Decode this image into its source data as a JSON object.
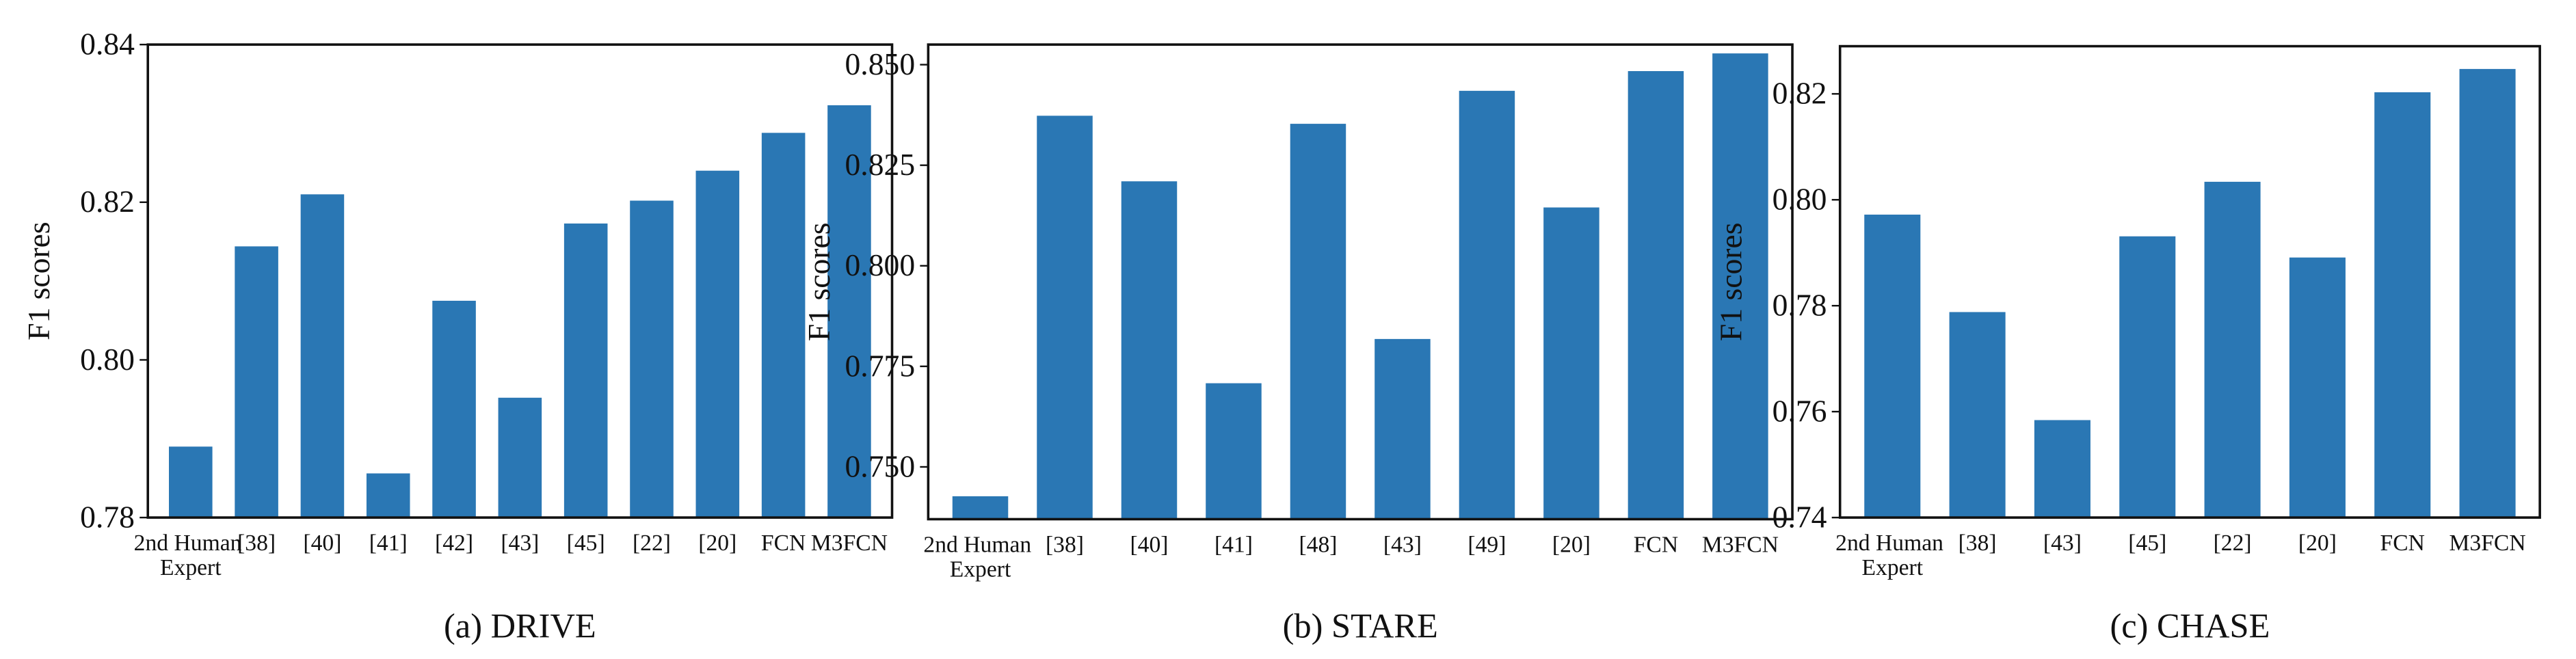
{
  "chart_data": [
    {
      "type": "bar",
      "caption": "(a) DRIVE",
      "ylabel": "F1 scores",
      "color": "#2a77b4",
      "categories": [
        "2nd Human Expert",
        "[38]",
        "[40]",
        "[41]",
        "[42]",
        "[43]",
        "[45]",
        "[22]",
        "[20]",
        "FCN",
        "M3FCN"
      ],
      "values": [
        0.789,
        0.8144,
        0.821,
        0.7856,
        0.8075,
        0.7952,
        0.8173,
        0.8202,
        0.824,
        0.8288,
        0.8323
      ],
      "ylim": [
        0.78,
        0.84
      ],
      "yticks": [
        0.78,
        {
          "value": 0.8,
          "label": "0.80"
        },
        0.82,
        0.84
      ]
    },
    {
      "type": "bar",
      "caption": "(b) STARE",
      "ylabel": "F1 scores",
      "color": "#2a77b4",
      "categories": [
        "2nd Human Expert",
        "[38]",
        "[40]",
        "[41]",
        "[48]",
        "[43]",
        "[49]",
        "[20]",
        "FCN",
        "M3FCN"
      ],
      "values": [
        0.7427,
        0.8373,
        0.821,
        0.7708,
        0.8353,
        0.7818,
        0.8435,
        0.8145,
        0.8484,
        0.8528
      ],
      "ylim": [
        0.737,
        0.855
      ],
      "yticks": [
        {
          "value": 0.75,
          "label": "0.750"
        },
        0.775,
        {
          "value": 0.8,
          "label": "0.800"
        },
        0.825,
        {
          "value": 0.85,
          "label": "0.850"
        }
      ]
    },
    {
      "type": "bar",
      "caption": "(c) CHASE",
      "ylabel": "F1 scores",
      "color": "#2a77b4",
      "categories": [
        "2nd Human Expert",
        "[38]",
        "[43]",
        "[45]",
        "[22]",
        "[20]",
        "FCN",
        "M3FCN"
      ],
      "values": [
        0.7972,
        0.7788,
        0.7584,
        0.7931,
        0.8034,
        0.7891,
        0.8203,
        0.8247
      ],
      "ylim": [
        0.74,
        0.829
      ],
      "yticks": [
        0.74,
        0.76,
        0.78,
        {
          "value": 0.8,
          "label": "0.80"
        },
        0.82
      ]
    }
  ]
}
